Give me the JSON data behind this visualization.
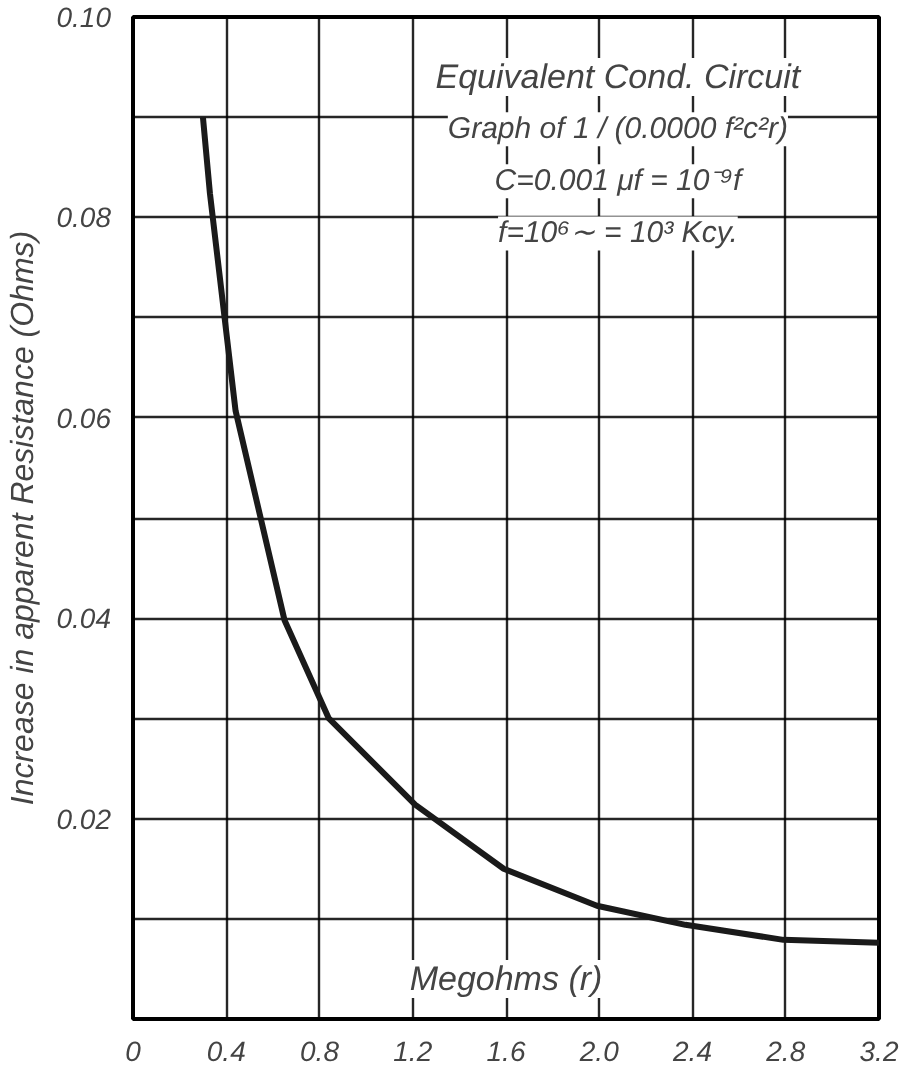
{
  "chart_data": {
    "type": "line",
    "title": "Equivalent Cond. Circuit",
    "subtitle": "Graph of 1 / (0.0000 f²c²r)",
    "annotations": [
      "C=0.001 μf = 10⁻⁹f",
      "f=10⁶∼ = 10³ Kcy."
    ],
    "xlabel": "Megohms (r)",
    "ylabel": "Increase in apparent Resistance (Ohms)",
    "x": [
      0.3,
      0.33,
      0.44,
      0.65,
      0.84,
      1.21,
      1.59,
      1.99,
      2.37,
      2.79,
      3.2
    ],
    "series": [
      {
        "color": "#1a1a1a",
        "values": [
          0.09,
          0.0824,
          0.0607,
          0.0398,
          0.03,
          0.0214,
          0.015,
          0.0113,
          0.0094,
          0.0079,
          0.0076
        ]
      }
    ],
    "xlim": [
      0,
      3.2
    ],
    "ylim": [
      0,
      0.1
    ],
    "xticks": [
      0,
      0.4,
      0.8,
      1.2,
      1.6,
      {
        "value": 2.0,
        "label": "2.0"
      },
      2.4,
      2.8,
      3.2
    ],
    "yticks": [
      {
        "value": 0,
        "label": null
      },
      {
        "value": 0.01,
        "label": null
      },
      0.02,
      {
        "value": 0.03,
        "label": null
      },
      0.04,
      {
        "value": 0.05,
        "label": null
      },
      0.06,
      {
        "value": 0.07,
        "label": null
      },
      0.08,
      {
        "value": 0.09,
        "label": null
      },
      {
        "value": 0.1,
        "label": "0.10"
      }
    ],
    "grid": true,
    "line_style": "solid",
    "marker": "none"
  }
}
